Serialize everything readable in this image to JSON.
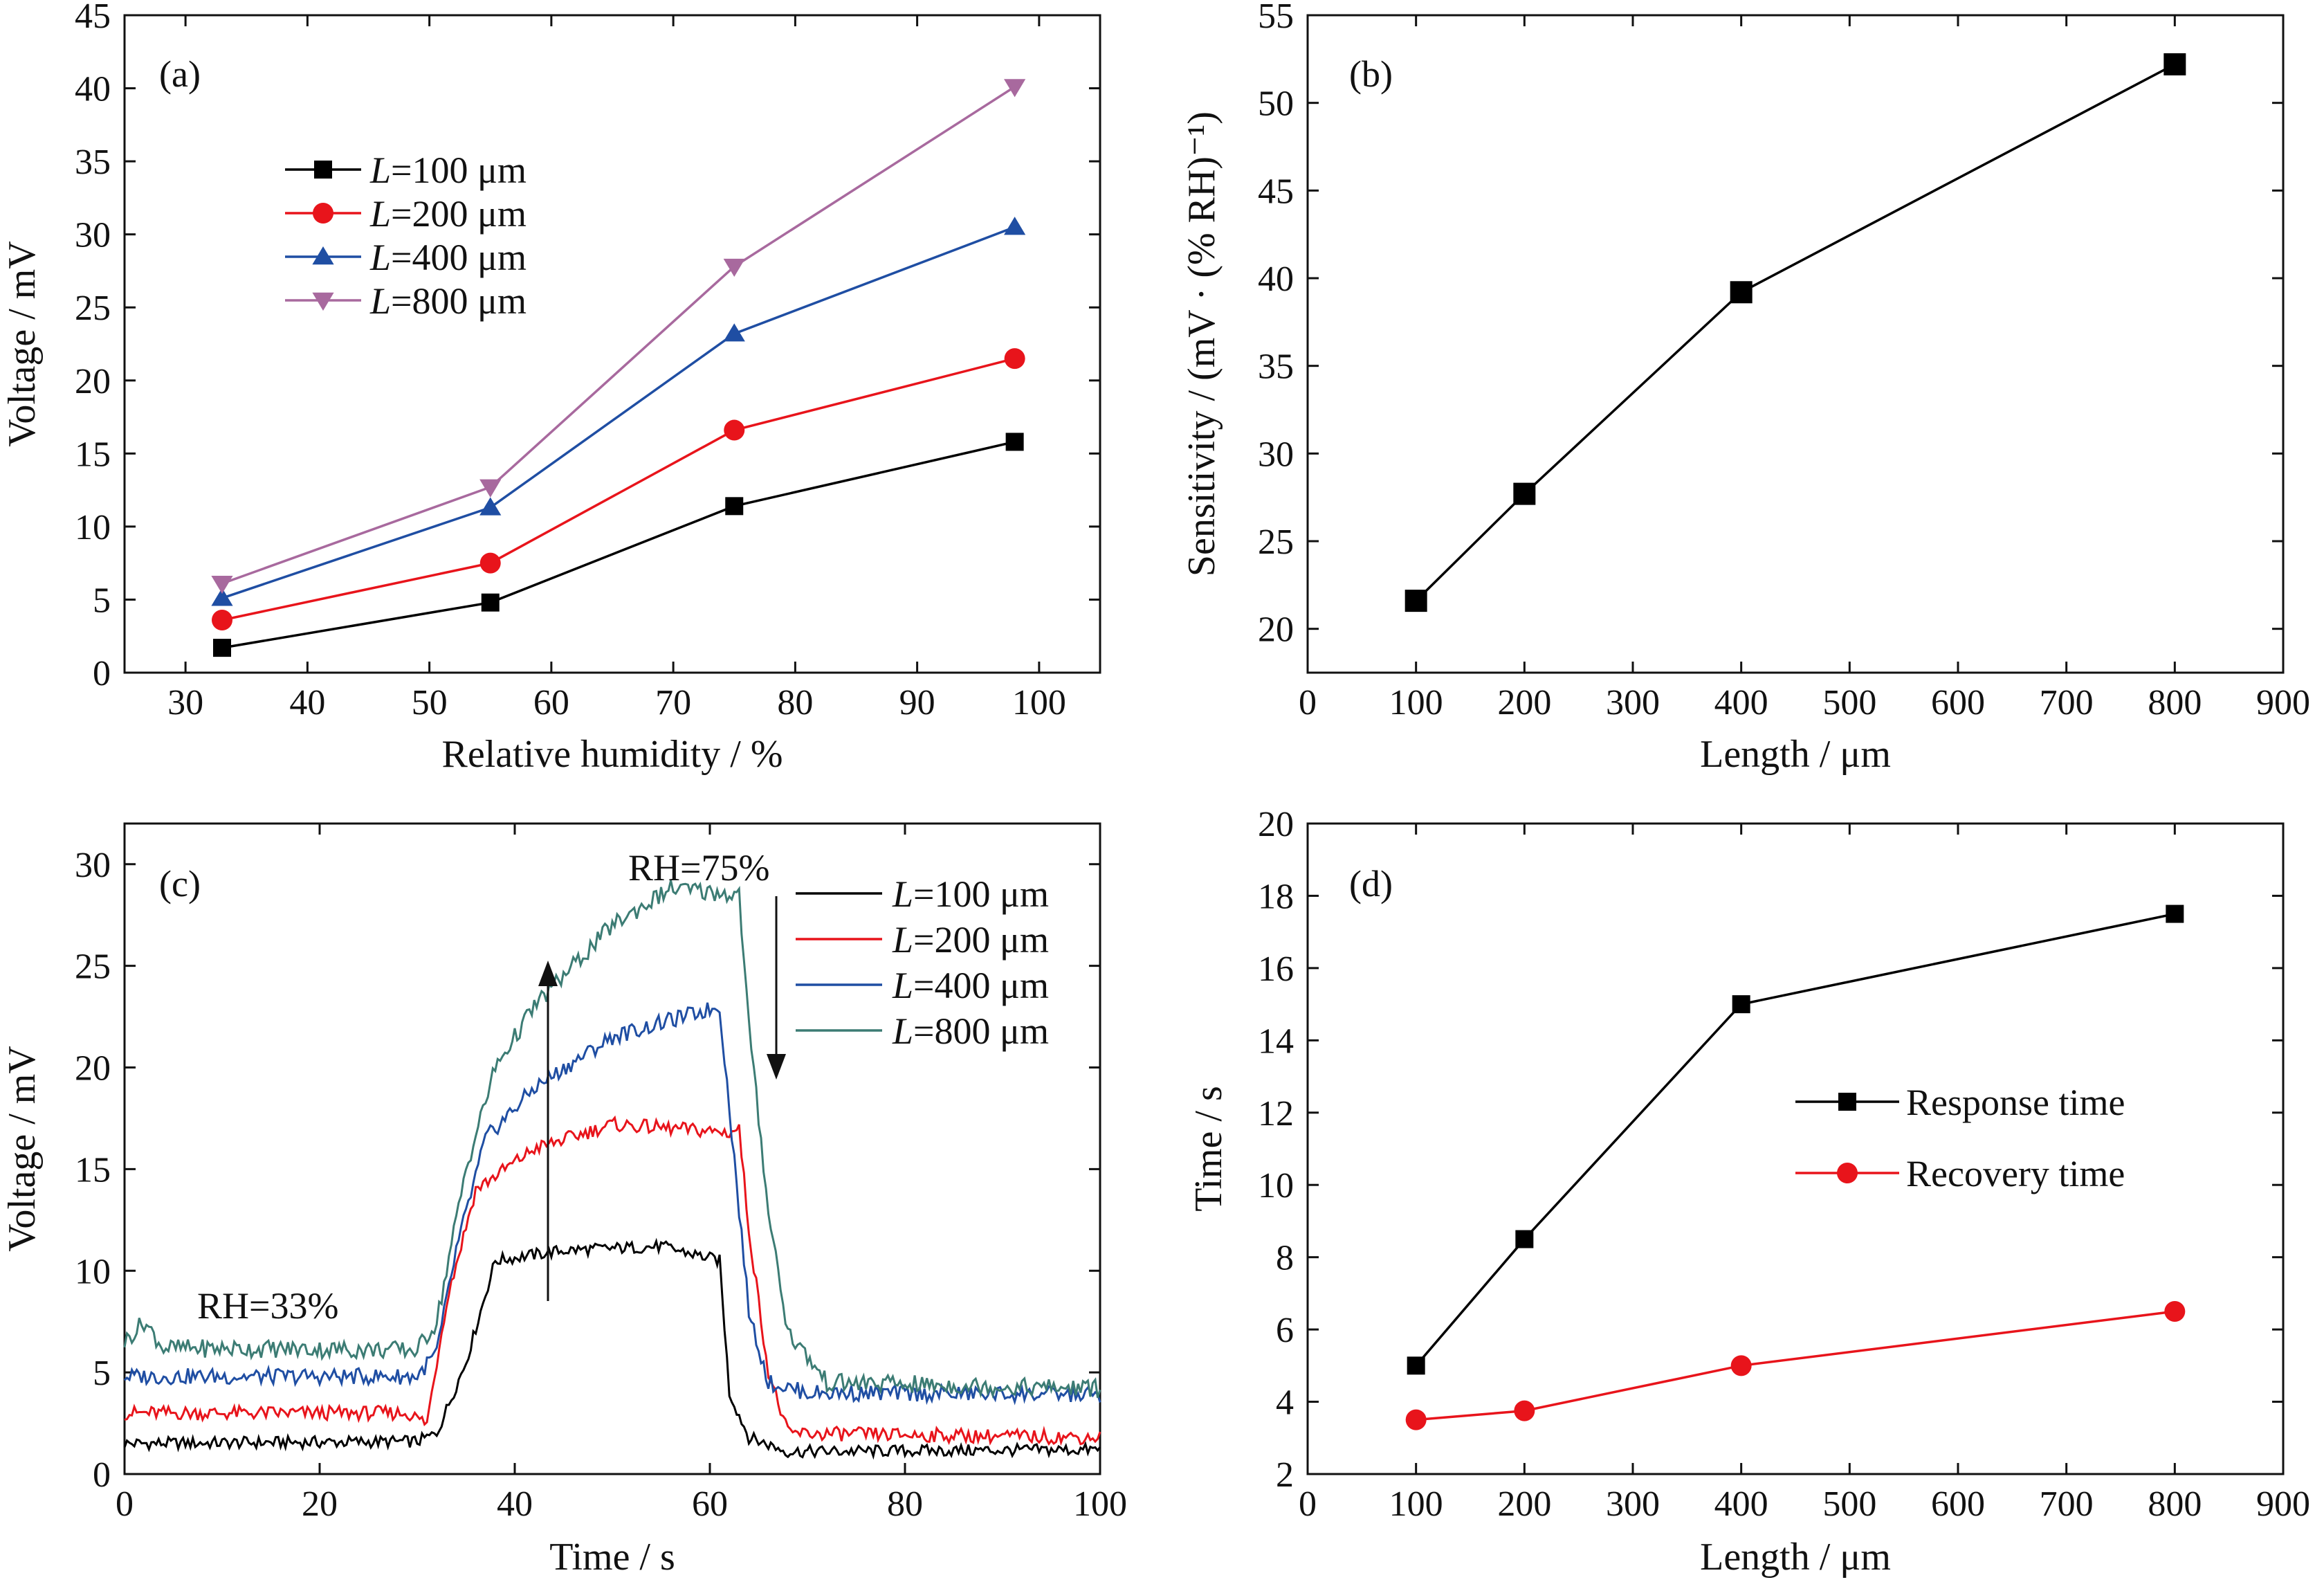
{
  "chart_data": [
    {
      "panel": "(a)",
      "type": "line",
      "xlabel": "Relative humidity / %",
      "ylabel": "Voltage / mV",
      "xlim": [
        25,
        105
      ],
      "ylim": [
        0,
        45
      ],
      "xticks": [
        30,
        40,
        50,
        60,
        70,
        80,
        90,
        100
      ],
      "yticks": [
        0,
        5,
        10,
        15,
        20,
        25,
        30,
        35,
        40,
        45
      ],
      "x": [
        33,
        55,
        75,
        98
      ],
      "legend_position": "upper-left",
      "series": [
        {
          "name_italic": "L",
          "name_rest": "=100 μm",
          "color": "#000000",
          "marker": "square",
          "values": [
            1.7,
            4.8,
            11.4,
            15.8
          ]
        },
        {
          "name_italic": "L",
          "name_rest": "=200 μm",
          "color": "#e8141b",
          "marker": "circle",
          "values": [
            3.6,
            7.5,
            16.6,
            21.5
          ]
        },
        {
          "name_italic": "L",
          "name_rest": "=400 μm",
          "color": "#1f4ea3",
          "marker": "triangle-up",
          "values": [
            5.1,
            11.3,
            23.2,
            30.5
          ]
        },
        {
          "name_italic": "L",
          "name_rest": "=800 μm",
          "color": "#a8699e",
          "marker": "triangle-down",
          "values": [
            6.1,
            12.7,
            27.8,
            40.1
          ]
        }
      ]
    },
    {
      "panel": "(b)",
      "type": "line",
      "xlabel": "Length / μm",
      "ylabel": "Sensitivity / (mV · (% RH)⁻¹)",
      "xlim": [
        0,
        900
      ],
      "ylim": [
        17.5,
        55
      ],
      "xticks": [
        0,
        100,
        200,
        300,
        400,
        500,
        600,
        700,
        800,
        900
      ],
      "yticks": [
        20,
        25,
        30,
        35,
        40,
        45,
        50,
        55
      ],
      "series": [
        {
          "color": "#000000",
          "marker": "square",
          "x": [
            100,
            200,
            400,
            800
          ],
          "values": [
            21.6,
            27.7,
            39.2,
            52.2
          ]
        }
      ]
    },
    {
      "panel": "(c)",
      "type": "line",
      "xlabel": "Time / s",
      "ylabel": "Voltage / mV",
      "xlim": [
        0,
        100
      ],
      "ylim": [
        0,
        32
      ],
      "xticks": [
        0,
        20,
        40,
        60,
        80,
        100
      ],
      "yticks": [
        0,
        5,
        10,
        15,
        20,
        25,
        30
      ],
      "annotations": [
        "RH=33%",
        "RH=75%"
      ],
      "legend_position": "upper-right",
      "series": [
        {
          "name_italic": "L",
          "name_rest": "=100 μm",
          "color": "#000000",
          "baseline": 1.5,
          "plateau": 11.0,
          "recovered": 1.1,
          "points": [
            [
              0,
              1.5
            ],
            [
              30,
              1.6
            ],
            [
              32,
              2.0
            ],
            [
              35,
              5.5
            ],
            [
              38,
              10.5
            ],
            [
              45,
              11.0
            ],
            [
              55,
              11.2
            ],
            [
              61,
              10.5
            ],
            [
              62,
              4.0
            ],
            [
              64,
              1.8
            ],
            [
              68,
              1.1
            ],
            [
              100,
              1.2
            ]
          ]
        },
        {
          "name_italic": "L",
          "name_rest": "=200 μm",
          "color": "#e8141b",
          "baseline": 3.0,
          "plateau": 17.0,
          "recovered": 1.8,
          "points": [
            [
              0,
              3.0
            ],
            [
              29,
              3.0
            ],
            [
              31,
              2.5
            ],
            [
              33,
              8.5
            ],
            [
              36,
              14.0
            ],
            [
              42,
              16.0
            ],
            [
              50,
              17.2
            ],
            [
              62,
              16.8
            ],
            [
              63,
              17.0
            ],
            [
              64,
              12.0
            ],
            [
              66,
              5.0
            ],
            [
              68,
              2.0
            ],
            [
              100,
              1.8
            ]
          ]
        },
        {
          "name_italic": "L",
          "name_rest": "=400 μm",
          "color": "#1f4ea3",
          "baseline": 4.8,
          "plateau": 22.5,
          "recovered": 3.8,
          "points": [
            [
              0,
              4.8
            ],
            [
              30,
              4.8
            ],
            [
              32,
              6.0
            ],
            [
              34,
              11.0
            ],
            [
              37,
              16.5
            ],
            [
              42,
              19.0
            ],
            [
              50,
              21.5
            ],
            [
              61,
              23.0
            ],
            [
              62,
              18.0
            ],
            [
              64,
              8.0
            ],
            [
              66,
              4.5
            ],
            [
              70,
              4.0
            ],
            [
              100,
              3.9
            ]
          ]
        },
        {
          "name_italic": "L",
          "name_rest": "=800 μm",
          "color": "#3c7c74",
          "baseline": 6.0,
          "plateau": 28.5,
          "recovered": 4.0,
          "points": [
            [
              0,
              6.5
            ],
            [
              2,
              7.5
            ],
            [
              4,
              6.2
            ],
            [
              30,
              6.1
            ],
            [
              32,
              7.5
            ],
            [
              35,
              15.0
            ],
            [
              38,
              20.0
            ],
            [
              42,
              23.0
            ],
            [
              50,
              27.0
            ],
            [
              56,
              28.8
            ],
            [
              63,
              28.5
            ],
            [
              64,
              22.0
            ],
            [
              66,
              13.0
            ],
            [
              68,
              7.0
            ],
            [
              72,
              4.5
            ],
            [
              100,
              4.2
            ]
          ]
        }
      ]
    },
    {
      "panel": "(d)",
      "type": "line",
      "xlabel": "Length / μm",
      "ylabel": "Time / s",
      "xlim": [
        0,
        900
      ],
      "ylim": [
        2,
        20
      ],
      "xticks": [
        0,
        100,
        200,
        300,
        400,
        500,
        600,
        700,
        800,
        900
      ],
      "yticks": [
        2,
        4,
        6,
        8,
        10,
        12,
        14,
        16,
        18,
        20
      ],
      "legend_position": "center-right",
      "series": [
        {
          "name": "Response time",
          "color": "#000000",
          "marker": "square",
          "x": [
            100,
            200,
            400,
            800
          ],
          "values": [
            5.0,
            8.5,
            15.0,
            17.5
          ]
        },
        {
          "name": "Recovery time",
          "color": "#e8141b",
          "marker": "circle",
          "x": [
            100,
            200,
            400,
            800
          ],
          "values": [
            3.5,
            3.75,
            5.0,
            6.5
          ]
        }
      ]
    }
  ]
}
